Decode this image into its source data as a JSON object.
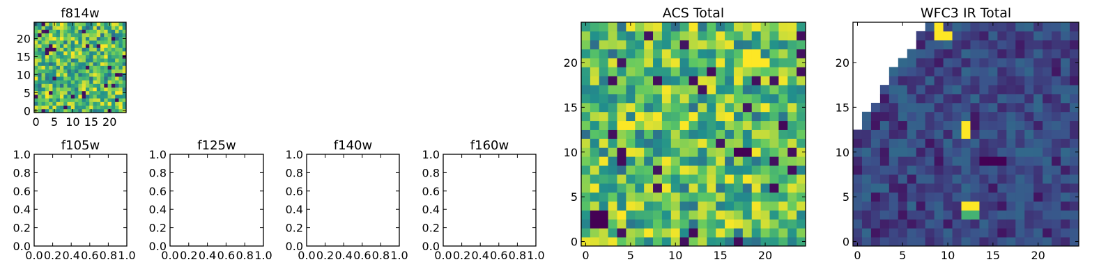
{
  "palette": {
    "viridis": [
      "#440154",
      "#3b528b",
      "#21908c",
      "#5dc863",
      "#fde725"
    ],
    "axis_color": "#000000",
    "background": "#ffffff"
  },
  "chart_data": [
    {
      "type": "heatmap",
      "title": "f814w",
      "xlabel": "",
      "ylabel": "",
      "xlim": [
        -0.5,
        24.5
      ],
      "ylim": [
        -0.5,
        24.5
      ],
      "xticks": [
        "0",
        "5",
        "10",
        "15",
        "20"
      ],
      "yticks": [
        "0",
        "5",
        "10",
        "15",
        "20"
      ],
      "grid_size": [
        25,
        25
      ],
      "colormap": "viridis",
      "value_range": [
        0,
        1
      ],
      "description_values": "random pixel intensities, mostly high (green-yellow) with scattered dark pixels"
    },
    {
      "type": "scatter",
      "title": "f105w",
      "xlim": [
        0,
        1
      ],
      "ylim": [
        0,
        1
      ],
      "xticks": [
        "0.0",
        "0.2",
        "0.4",
        "0.6",
        "0.8",
        "1.0"
      ],
      "yticks": [
        "0.0",
        "0.2",
        "0.4",
        "0.6",
        "0.8",
        "1.0"
      ],
      "series": []
    },
    {
      "type": "scatter",
      "title": "f125w",
      "xlim": [
        0,
        1
      ],
      "ylim": [
        0,
        1
      ],
      "xticks": [
        "0.0",
        "0.2",
        "0.4",
        "0.6",
        "0.8",
        "1.0"
      ],
      "yticks": [
        "0.0",
        "0.2",
        "0.4",
        "0.6",
        "0.8",
        "1.0"
      ],
      "series": []
    },
    {
      "type": "scatter",
      "title": "f140w",
      "xlim": [
        0,
        1
      ],
      "ylim": [
        0,
        1
      ],
      "xticks": [
        "0.0",
        "0.2",
        "0.4",
        "0.6",
        "0.8",
        "1.0"
      ],
      "yticks": [
        "0.0",
        "0.2",
        "0.4",
        "0.6",
        "0.8",
        "1.0"
      ],
      "series": []
    },
    {
      "type": "scatter",
      "title": "f160w",
      "xlim": [
        0,
        1
      ],
      "ylim": [
        0,
        1
      ],
      "xticks": [
        "0.0",
        "0.2",
        "0.4",
        "0.6",
        "0.8",
        "1.0"
      ],
      "yticks": [
        "0.0",
        "0.2",
        "0.4",
        "0.6",
        "0.8",
        "1.0"
      ],
      "series": []
    },
    {
      "type": "heatmap",
      "title": "ACS Total",
      "xlim": [
        -0.5,
        24.5
      ],
      "ylim": [
        -0.5,
        24.5
      ],
      "xticks": [
        "0",
        "5",
        "10",
        "15",
        "20"
      ],
      "yticks": [
        "0",
        "5",
        "10",
        "15",
        "20"
      ],
      "grid_size": [
        25,
        25
      ],
      "colormap": "viridis",
      "value_range": [
        0,
        1
      ],
      "highlights": [
        {
          "cells": [
            [
              1,
              2
            ],
            [
              2,
              2
            ],
            [
              1,
              3
            ],
            [
              2,
              3
            ]
          ],
          "value": 0.0
        },
        {
          "cells": [
            [
              17,
              10
            ],
            [
              18,
              10
            ]
          ],
          "value": 0.0
        },
        {
          "cells": [
            [
              18,
              20
            ],
            [
              19,
              20
            ],
            [
              20,
              20
            ],
            [
              18,
              21
            ],
            [
              19,
              21
            ]
          ],
          "value": 1.0
        }
      ]
    },
    {
      "type": "heatmap",
      "title": "WFC3 IR Total",
      "xlim": [
        -0.5,
        24.5
      ],
      "ylim": [
        -0.5,
        24.5
      ],
      "xticks": [
        "0",
        "5",
        "10",
        "15",
        "20"
      ],
      "yticks": [
        "0",
        "5",
        "10",
        "15",
        "20"
      ],
      "grid_size": [
        25,
        25
      ],
      "colormap": "viridis",
      "value_range": [
        0,
        1
      ],
      "masked_region": "upper-left triangle (no data)",
      "highlights": [
        {
          "cells": [
            [
              9,
              23
            ],
            [
              10,
              23
            ],
            [
              9,
              24
            ]
          ],
          "value": 1.0
        },
        {
          "cells": [
            [
              12,
              12
            ],
            [
              12,
              13
            ]
          ],
          "value": 1.0
        },
        {
          "cells": [
            [
              12,
              4
            ],
            [
              13,
              4
            ]
          ],
          "value": 1.0
        },
        {
          "cells": [
            [
              12,
              3
            ],
            [
              13,
              3
            ]
          ],
          "value": 0.65
        },
        {
          "cells": [
            [
              14,
              9
            ],
            [
              15,
              9
            ],
            [
              16,
              9
            ]
          ],
          "value": 0.0
        }
      ]
    }
  ]
}
